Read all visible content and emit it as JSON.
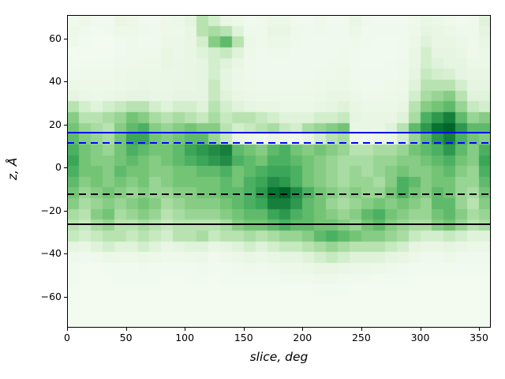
{
  "chart_data": {
    "type": "heatmap",
    "title": "",
    "xlabel": "slice, deg",
    "ylabel": "z, Å",
    "xlim": [
      0,
      360
    ],
    "ylim": [
      -74.5,
      71
    ],
    "xticks": [
      0,
      50,
      100,
      150,
      200,
      250,
      300,
      350
    ],
    "yticks": [
      60,
      40,
      20,
      0,
      -20,
      -40,
      -60
    ],
    "colormap": "Greens",
    "grid_info": "rows top-to-bottom, z from +71 to -74.5 Å in 5 Å bins; cols left-to-right, 0-360 deg in 10 deg bins; values are normalized density 0-1",
    "x_bin_deg": 10,
    "y_bin_A": 5,
    "grid": [
      [
        0.05,
        0.07,
        0.05,
        0.05,
        0.1,
        0.08,
        0.05,
        0.05,
        0.07,
        0.08,
        0.12,
        0.3,
        0.2,
        0.1,
        0.07,
        0.05,
        0.06,
        0.08,
        0.08,
        0.05,
        0.05,
        0.06,
        0.05,
        0.05,
        0.1,
        0.06,
        0.05,
        0.05,
        0.05,
        0.06,
        0.1,
        0.08,
        0.06,
        0.05,
        0.06,
        0.15
      ],
      [
        0.07,
        0.05,
        0.04,
        0.05,
        0.07,
        0.07,
        0.06,
        0.05,
        0.07,
        0.07,
        0.1,
        0.3,
        0.35,
        0.3,
        0.15,
        0.06,
        0.06,
        0.1,
        0.1,
        0.06,
        0.05,
        0.06,
        0.05,
        0.05,
        0.08,
        0.05,
        0.05,
        0.05,
        0.05,
        0.07,
        0.12,
        0.1,
        0.08,
        0.06,
        0.06,
        0.12
      ],
      [
        0.06,
        0.04,
        0.03,
        0.03,
        0.05,
        0.06,
        0.05,
        0.05,
        0.08,
        0.08,
        0.1,
        0.2,
        0.45,
        0.55,
        0.3,
        0.08,
        0.06,
        0.08,
        0.08,
        0.06,
        0.05,
        0.05,
        0.05,
        0.05,
        0.06,
        0.05,
        0.04,
        0.04,
        0.05,
        0.08,
        0.15,
        0.1,
        0.1,
        0.08,
        0.06,
        0.1
      ],
      [
        0.03,
        0.04,
        0.04,
        0.04,
        0.05,
        0.06,
        0.06,
        0.06,
        0.1,
        0.08,
        0.1,
        0.15,
        0.2,
        0.25,
        0.15,
        0.07,
        0.05,
        0.06,
        0.06,
        0.05,
        0.05,
        0.05,
        0.05,
        0.06,
        0.05,
        0.04,
        0.04,
        0.04,
        0.05,
        0.1,
        0.2,
        0.12,
        0.12,
        0.1,
        0.06,
        0.08
      ],
      [
        0.04,
        0.05,
        0.05,
        0.05,
        0.06,
        0.06,
        0.07,
        0.07,
        0.1,
        0.09,
        0.1,
        0.12,
        0.2,
        0.15,
        0.1,
        0.06,
        0.05,
        0.05,
        0.05,
        0.05,
        0.05,
        0.05,
        0.06,
        0.06,
        0.05,
        0.04,
        0.04,
        0.05,
        0.06,
        0.1,
        0.2,
        0.15,
        0.12,
        0.12,
        0.08,
        0.08
      ],
      [
        0.05,
        0.06,
        0.06,
        0.06,
        0.07,
        0.08,
        0.08,
        0.08,
        0.09,
        0.09,
        0.1,
        0.12,
        0.2,
        0.12,
        0.08,
        0.06,
        0.05,
        0.05,
        0.05,
        0.05,
        0.05,
        0.06,
        0.06,
        0.07,
        0.05,
        0.05,
        0.05,
        0.05,
        0.06,
        0.12,
        0.25,
        0.2,
        0.18,
        0.12,
        0.1,
        0.1
      ],
      [
        0.08,
        0.07,
        0.07,
        0.07,
        0.08,
        0.09,
        0.1,
        0.09,
        0.09,
        0.1,
        0.1,
        0.12,
        0.25,
        0.12,
        0.08,
        0.07,
        0.06,
        0.06,
        0.06,
        0.06,
        0.06,
        0.07,
        0.08,
        0.08,
        0.06,
        0.05,
        0.05,
        0.06,
        0.07,
        0.15,
        0.3,
        0.3,
        0.3,
        0.2,
        0.12,
        0.12
      ],
      [
        0.12,
        0.09,
        0.08,
        0.09,
        0.1,
        0.12,
        0.12,
        0.1,
        0.1,
        0.12,
        0.12,
        0.12,
        0.25,
        0.15,
        0.1,
        0.08,
        0.07,
        0.07,
        0.07,
        0.07,
        0.07,
        0.08,
        0.1,
        0.1,
        0.08,
        0.06,
        0.06,
        0.07,
        0.08,
        0.2,
        0.35,
        0.4,
        0.45,
        0.3,
        0.15,
        0.15
      ],
      [
        0.3,
        0.2,
        0.15,
        0.2,
        0.25,
        0.3,
        0.3,
        0.2,
        0.15,
        0.2,
        0.2,
        0.15,
        0.3,
        0.2,
        0.15,
        0.12,
        0.1,
        0.1,
        0.08,
        0.08,
        0.08,
        0.1,
        0.12,
        0.15,
        0.1,
        0.08,
        0.08,
        0.08,
        0.1,
        0.3,
        0.45,
        0.5,
        0.55,
        0.4,
        0.25,
        0.2
      ],
      [
        0.45,
        0.3,
        0.3,
        0.35,
        0.4,
        0.5,
        0.45,
        0.35,
        0.3,
        0.35,
        0.3,
        0.25,
        0.35,
        0.25,
        0.3,
        0.3,
        0.25,
        0.2,
        0.15,
        0.15,
        0.15,
        0.2,
        0.2,
        0.25,
        0.12,
        0.1,
        0.1,
        0.1,
        0.15,
        0.35,
        0.6,
        0.7,
        0.8,
        0.55,
        0.4,
        0.45
      ],
      [
        0.5,
        0.4,
        0.35,
        0.3,
        0.45,
        0.55,
        0.6,
        0.45,
        0.4,
        0.45,
        0.5,
        0.45,
        0.45,
        0.3,
        0.2,
        0.25,
        0.3,
        0.35,
        0.25,
        0.2,
        0.35,
        0.4,
        0.45,
        0.5,
        0.1,
        0.1,
        0.1,
        0.15,
        0.3,
        0.55,
        0.7,
        0.85,
        0.9,
        0.7,
        0.55,
        0.55
      ],
      [
        0.55,
        0.45,
        0.4,
        0.35,
        0.5,
        0.65,
        0.65,
        0.5,
        0.45,
        0.5,
        0.55,
        0.55,
        0.4,
        0.25,
        0.1,
        0.07,
        0.05,
        0.1,
        0.07,
        0.05,
        0.1,
        0.2,
        0.3,
        0.35,
        0.07,
        0.05,
        0.07,
        0.1,
        0.2,
        0.4,
        0.55,
        0.7,
        0.8,
        0.6,
        0.5,
        0.45
      ],
      [
        0.6,
        0.5,
        0.45,
        0.4,
        0.5,
        0.6,
        0.55,
        0.5,
        0.5,
        0.55,
        0.65,
        0.7,
        0.75,
        0.8,
        0.55,
        0.5,
        0.45,
        0.55,
        0.6,
        0.5,
        0.45,
        0.5,
        0.45,
        0.4,
        0.3,
        0.3,
        0.35,
        0.35,
        0.4,
        0.5,
        0.55,
        0.6,
        0.7,
        0.55,
        0.45,
        0.6
      ],
      [
        0.65,
        0.5,
        0.45,
        0.45,
        0.5,
        0.55,
        0.5,
        0.45,
        0.5,
        0.55,
        0.6,
        0.65,
        0.7,
        0.75,
        0.6,
        0.55,
        0.5,
        0.6,
        0.6,
        0.55,
        0.5,
        0.45,
        0.4,
        0.35,
        0.35,
        0.35,
        0.4,
        0.4,
        0.45,
        0.45,
        0.5,
        0.55,
        0.6,
        0.5,
        0.45,
        0.65
      ],
      [
        0.6,
        0.5,
        0.5,
        0.45,
        0.55,
        0.5,
        0.5,
        0.45,
        0.45,
        0.5,
        0.5,
        0.55,
        0.55,
        0.6,
        0.5,
        0.55,
        0.6,
        0.65,
        0.65,
        0.6,
        0.5,
        0.45,
        0.4,
        0.35,
        0.4,
        0.35,
        0.4,
        0.45,
        0.5,
        0.45,
        0.45,
        0.5,
        0.55,
        0.45,
        0.4,
        0.6
      ],
      [
        0.55,
        0.45,
        0.5,
        0.45,
        0.5,
        0.45,
        0.5,
        0.4,
        0.45,
        0.5,
        0.5,
        0.5,
        0.5,
        0.55,
        0.5,
        0.6,
        0.65,
        0.75,
        0.7,
        0.6,
        0.5,
        0.45,
        0.4,
        0.35,
        0.4,
        0.4,
        0.35,
        0.45,
        0.6,
        0.55,
        0.45,
        0.5,
        0.5,
        0.4,
        0.4,
        0.55
      ],
      [
        0.5,
        0.4,
        0.45,
        0.5,
        0.45,
        0.4,
        0.45,
        0.4,
        0.4,
        0.45,
        0.45,
        0.5,
        0.5,
        0.55,
        0.55,
        0.6,
        0.7,
        0.85,
        0.9,
        0.75,
        0.6,
        0.5,
        0.45,
        0.4,
        0.45,
        0.4,
        0.4,
        0.5,
        0.6,
        0.5,
        0.45,
        0.55,
        0.5,
        0.4,
        0.35,
        0.5
      ],
      [
        0.45,
        0.35,
        0.4,
        0.45,
        0.4,
        0.45,
        0.5,
        0.45,
        0.35,
        0.4,
        0.45,
        0.45,
        0.45,
        0.5,
        0.55,
        0.6,
        0.65,
        0.8,
        0.8,
        0.7,
        0.55,
        0.5,
        0.4,
        0.35,
        0.4,
        0.45,
        0.5,
        0.45,
        0.5,
        0.45,
        0.4,
        0.55,
        0.55,
        0.4,
        0.3,
        0.45
      ],
      [
        0.35,
        0.3,
        0.45,
        0.5,
        0.35,
        0.4,
        0.45,
        0.4,
        0.3,
        0.35,
        0.4,
        0.4,
        0.4,
        0.45,
        0.5,
        0.55,
        0.55,
        0.65,
        0.7,
        0.6,
        0.55,
        0.5,
        0.45,
        0.4,
        0.45,
        0.55,
        0.6,
        0.5,
        0.45,
        0.4,
        0.4,
        0.5,
        0.55,
        0.45,
        0.35,
        0.4
      ],
      [
        0.3,
        0.25,
        0.35,
        0.4,
        0.3,
        0.3,
        0.35,
        0.3,
        0.25,
        0.3,
        0.3,
        0.3,
        0.3,
        0.35,
        0.45,
        0.5,
        0.5,
        0.55,
        0.6,
        0.55,
        0.55,
        0.5,
        0.5,
        0.45,
        0.4,
        0.5,
        0.55,
        0.45,
        0.4,
        0.35,
        0.35,
        0.45,
        0.5,
        0.4,
        0.3,
        0.35
      ],
      [
        0.25,
        0.2,
        0.25,
        0.3,
        0.3,
        0.25,
        0.3,
        0.25,
        0.2,
        0.3,
        0.3,
        0.35,
        0.25,
        0.3,
        0.3,
        0.35,
        0.3,
        0.35,
        0.4,
        0.4,
        0.45,
        0.55,
        0.6,
        0.55,
        0.5,
        0.45,
        0.45,
        0.4,
        0.35,
        0.25,
        0.2,
        0.2,
        0.25,
        0.2,
        0.15,
        0.15
      ],
      [
        0.12,
        0.1,
        0.15,
        0.2,
        0.15,
        0.15,
        0.2,
        0.15,
        0.1,
        0.12,
        0.15,
        0.15,
        0.1,
        0.12,
        0.15,
        0.2,
        0.15,
        0.2,
        0.25,
        0.25,
        0.3,
        0.35,
        0.4,
        0.35,
        0.3,
        0.3,
        0.3,
        0.25,
        0.2,
        0.12,
        0.1,
        0.1,
        0.12,
        0.1,
        0.08,
        0.08
      ],
      [
        0.06,
        0.05,
        0.06,
        0.08,
        0.07,
        0.07,
        0.08,
        0.07,
        0.06,
        0.06,
        0.07,
        0.08,
        0.05,
        0.07,
        0.08,
        0.1,
        0.08,
        0.1,
        0.12,
        0.12,
        0.15,
        0.2,
        0.25,
        0.2,
        0.15,
        0.15,
        0.15,
        0.12,
        0.1,
        0.07,
        0.05,
        0.05,
        0.07,
        0.05,
        0.05,
        0.05
      ],
      [
        0.04,
        0.03,
        0.03,
        0.04,
        0.04,
        0.04,
        0.05,
        0.04,
        0.04,
        0.04,
        0.04,
        0.05,
        0.04,
        0.04,
        0.05,
        0.06,
        0.05,
        0.06,
        0.07,
        0.07,
        0.08,
        0.1,
        0.1,
        0.09,
        0.08,
        0.08,
        0.07,
        0.06,
        0.05,
        0.04,
        0.04,
        0.04,
        0.04,
        0.04,
        0.04,
        0.04
      ],
      [
        0.04,
        0.03,
        0.03,
        0.03,
        0.04,
        0.04,
        0.04,
        0.04,
        0.03,
        0.03,
        0.04,
        0.04,
        0.03,
        0.04,
        0.04,
        0.04,
        0.04,
        0.04,
        0.05,
        0.05,
        0.05,
        0.06,
        0.06,
        0.05,
        0.05,
        0.05,
        0.04,
        0.04,
        0.04,
        0.03,
        0.03,
        0.03,
        0.03,
        0.03,
        0.03,
        0.03
      ],
      [
        0.03,
        0.03,
        0.03,
        0.03,
        0.03,
        0.03,
        0.03,
        0.03,
        0.03,
        0.03,
        0.03,
        0.03,
        0.03,
        0.03,
        0.03,
        0.03,
        0.03,
        0.03,
        0.03,
        0.03,
        0.03,
        0.04,
        0.04,
        0.04,
        0.03,
        0.03,
        0.03,
        0.03,
        0.03,
        0.03,
        0.03,
        0.03,
        0.03,
        0.03,
        0.03,
        0.03
      ],
      [
        0.03,
        0.03,
        0.03,
        0.03,
        0.03,
        0.03,
        0.03,
        0.03,
        0.03,
        0.03,
        0.03,
        0.03,
        0.03,
        0.03,
        0.03,
        0.03,
        0.03,
        0.03,
        0.03,
        0.03,
        0.03,
        0.03,
        0.03,
        0.03,
        0.03,
        0.03,
        0.03,
        0.03,
        0.03,
        0.03,
        0.03,
        0.03,
        0.03,
        0.03,
        0.03,
        0.03
      ],
      [
        0.03,
        0.03,
        0.03,
        0.03,
        0.03,
        0.03,
        0.03,
        0.03,
        0.03,
        0.03,
        0.03,
        0.03,
        0.03,
        0.03,
        0.03,
        0.03,
        0.03,
        0.03,
        0.03,
        0.03,
        0.03,
        0.03,
        0.03,
        0.03,
        0.03,
        0.03,
        0.03,
        0.03,
        0.03,
        0.03,
        0.03,
        0.03,
        0.03,
        0.03,
        0.03,
        0.03
      ],
      [
        0.03,
        0.03,
        0.03,
        0.03,
        0.03,
        0.03,
        0.03,
        0.03,
        0.03,
        0.03,
        0.03,
        0.03,
        0.03,
        0.03,
        0.03,
        0.03,
        0.03,
        0.03,
        0.03,
        0.03,
        0.03,
        0.03,
        0.03,
        0.03,
        0.03,
        0.03,
        0.03,
        0.03,
        0.03,
        0.03,
        0.03,
        0.03,
        0.03,
        0.03,
        0.03,
        0.03
      ]
    ],
    "hlines": [
      {
        "name": "upper-boundary-solid",
        "z": 16.4,
        "color": "#0000ff",
        "style": "solid"
      },
      {
        "name": "upper-boundary-dashed",
        "z": 11.6,
        "color": "#0000ff",
        "style": "dashed"
      },
      {
        "name": "lower-boundary-dashed",
        "z": -12.4,
        "color": "#000000",
        "style": "dashed"
      },
      {
        "name": "lower-boundary-solid",
        "z": -26.4,
        "color": "#000000",
        "style": "solid"
      }
    ],
    "colormap_stops": [
      [
        0.0,
        "#f7fcf5"
      ],
      [
        0.125,
        "#e5f5e0"
      ],
      [
        0.25,
        "#c7e9c0"
      ],
      [
        0.375,
        "#a1d99b"
      ],
      [
        0.5,
        "#74c476"
      ],
      [
        0.625,
        "#41ab5d"
      ],
      [
        0.75,
        "#238b45"
      ],
      [
        0.875,
        "#006d2c"
      ],
      [
        1.0,
        "#00441b"
      ]
    ]
  }
}
